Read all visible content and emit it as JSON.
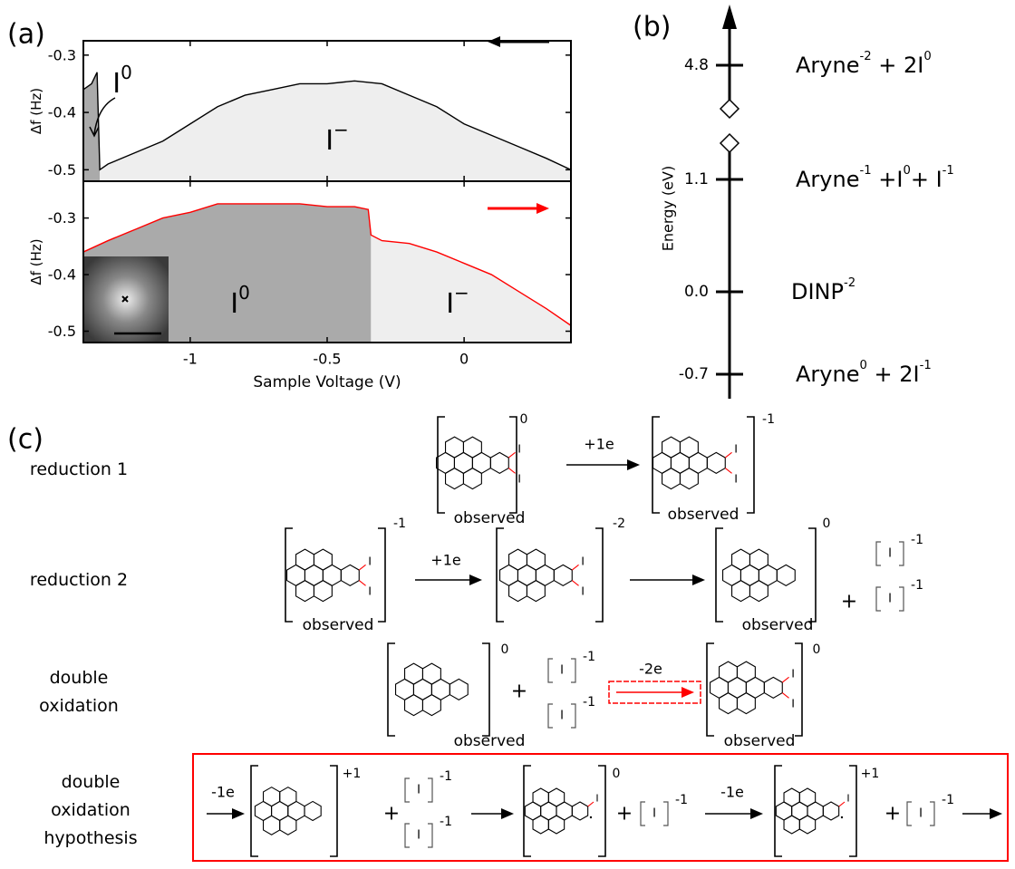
{
  "chart_data": [
    {
      "type": "line",
      "panel_label": "(a)",
      "ylabel": "Δf (Hz)",
      "x": [
        -1.39,
        -1.36,
        -1.34,
        -1.33,
        -1.3,
        -1.2,
        -1.1,
        -1.0,
        -0.9,
        -0.8,
        -0.7,
        -0.6,
        -0.5,
        -0.4,
        -0.3,
        -0.2,
        -0.1,
        0,
        0.1,
        0.2,
        0.3,
        0.39
      ],
      "series": [
        {
          "color": "#000000",
          "values": [
            -0.36,
            -0.35,
            -0.33,
            -0.5,
            -0.49,
            -0.47,
            -0.45,
            -0.42,
            -0.39,
            -0.37,
            -0.36,
            -0.35,
            -0.35,
            -0.345,
            -0.35,
            -0.37,
            -0.39,
            -0.42,
            -0.44,
            -0.46,
            -0.48,
            -0.5
          ]
        }
      ],
      "xlim": [
        -1.39,
        0.39
      ],
      "ylim": [
        -0.52,
        -0.275
      ],
      "xticks": [
        -1,
        -0.5,
        0
      ],
      "yticks": [
        -0.3,
        -0.4,
        -0.5
      ],
      "regions": [
        {
          "x": [
            -1.39,
            -1.33
          ],
          "color": "#aaaaaa",
          "label": "I",
          "sup": "0"
        },
        {
          "x": [
            -1.33,
            0.39
          ],
          "color": "#eeeeee",
          "label": "I",
          "sup": "−"
        }
      ]
    },
    {
      "type": "line",
      "ylabel": "Δf (Hz)",
      "xlabel": "Sample Voltage (V)",
      "x": [
        -1.39,
        -1.3,
        -1.2,
        -1.1,
        -1.0,
        -0.9,
        -0.8,
        -0.7,
        -0.6,
        -0.5,
        -0.4,
        -0.35,
        -0.34,
        -0.3,
        -0.2,
        -0.1,
        0,
        0.1,
        0.2,
        0.3,
        0.39
      ],
      "series": [
        {
          "color": "#ff0000",
          "values": [
            -0.36,
            -0.34,
            -0.32,
            -0.3,
            -0.29,
            -0.275,
            -0.275,
            -0.275,
            -0.275,
            -0.28,
            -0.28,
            -0.285,
            -0.33,
            -0.34,
            -0.345,
            -0.36,
            -0.38,
            -0.4,
            -0.43,
            -0.46,
            -0.49
          ]
        }
      ],
      "xlim": [
        -1.39,
        0.39
      ],
      "ylim": [
        -0.52,
        -0.235
      ],
      "xticks": [
        -1,
        -0.5,
        0
      ],
      "yticks": [
        -0.3,
        -0.4,
        -0.5
      ],
      "regions": [
        {
          "x": [
            -1.39,
            -0.34
          ],
          "color": "#aaaaaa",
          "label": "I",
          "sup": "0"
        },
        {
          "x": [
            -0.34,
            0.39
          ],
          "color": "#eeeeee",
          "label": "I",
          "sup": "−"
        }
      ]
    }
  ],
  "panel_b": {
    "label": "(b)",
    "ylabel": "Energy (eV)",
    "levels": [
      {
        "tick": "4.8",
        "species": [
          {
            "text": "Aryne",
            "sup": "-2"
          },
          {
            "text": " + 2I",
            "sup": "0"
          }
        ]
      },
      {
        "tick": "1.1",
        "species": [
          {
            "text": "Aryne",
            "sup": "-1"
          },
          {
            "text": " +I",
            "sup": "0"
          },
          {
            "text": "+ I",
            "sup": "-1"
          }
        ]
      },
      {
        "tick": "0.0",
        "species": [
          {
            "text": "DINP",
            "sup": "-2"
          }
        ]
      },
      {
        "tick": "-0.7",
        "species": [
          {
            "text": "Aryne",
            "sup": "0"
          },
          {
            "text": " + 2I",
            "sup": "-1"
          }
        ]
      }
    ]
  },
  "panel_c": {
    "label": "(c)",
    "iodine": "I",
    "plus": "+",
    "observed": "observed",
    "rows": [
      {
        "label": [
          "reduction 1"
        ],
        "charges": [
          "0",
          "-1"
        ],
        "arrows": [
          "+1e"
        ]
      },
      {
        "label": [
          "reduction 2"
        ],
        "charges": [
          "-1",
          "-2",
          "0",
          "-1",
          "-1"
        ],
        "arrows": [
          "+1e"
        ]
      },
      {
        "label": [
          "double",
          "oxidation"
        ],
        "charges": [
          "0",
          "-1",
          "-1",
          "0"
        ],
        "arrows": [
          "-2e"
        ]
      },
      {
        "label": [
          "double",
          "oxidation",
          "hypothesis"
        ],
        "charges": [
          "+1",
          "-1",
          "-1",
          "0",
          "-1",
          "+1",
          "-1"
        ],
        "arrows": [
          "-1e",
          "-1e"
        ]
      }
    ]
  }
}
